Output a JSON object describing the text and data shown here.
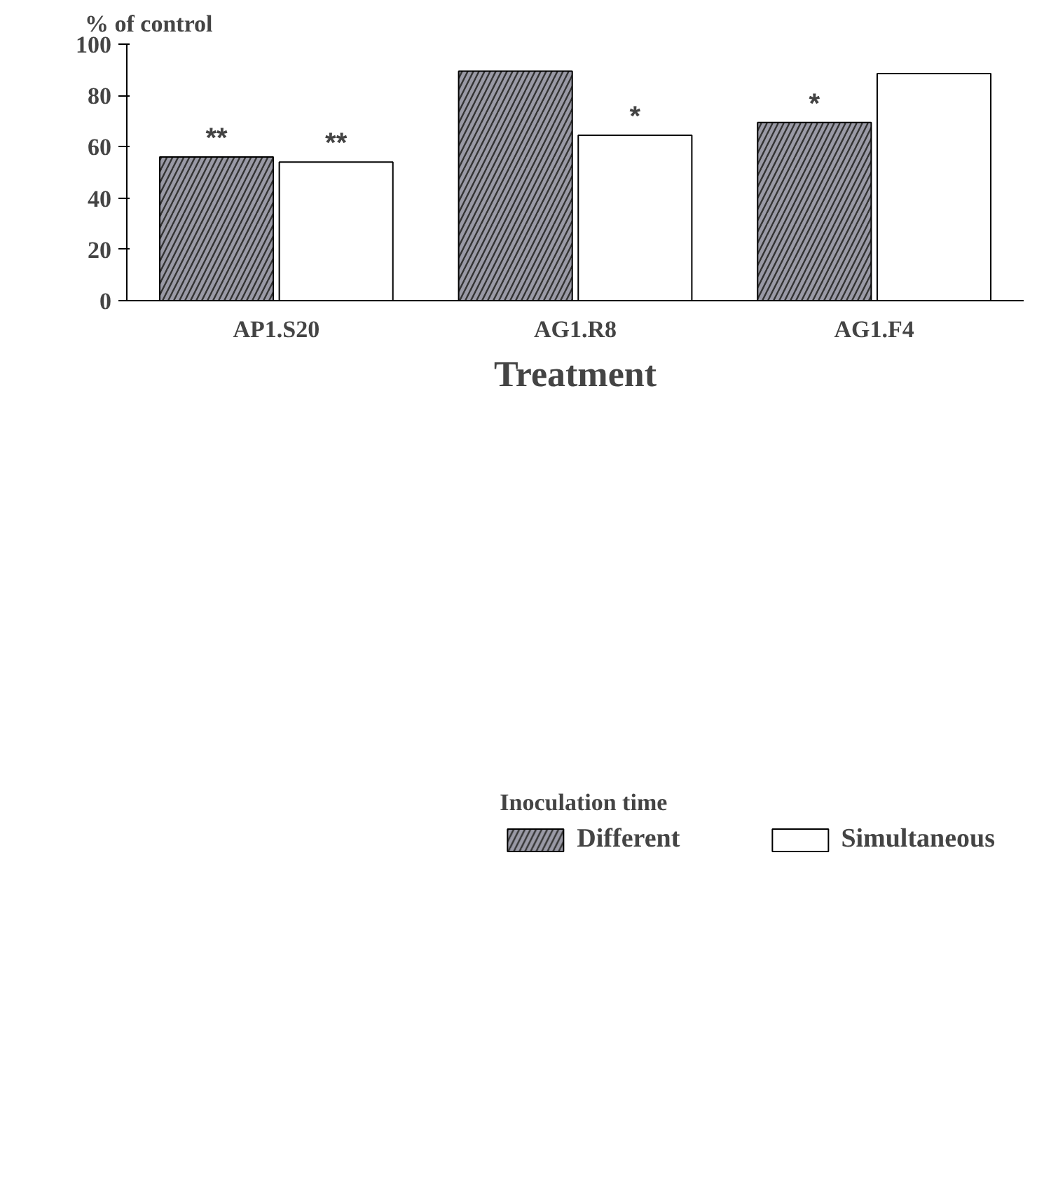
{
  "chart_data": {
    "type": "bar",
    "xlabel": "Treatment",
    "ylabel": "% of control",
    "legend_title": "Inoculation time",
    "categories": [
      "AP1.S20",
      "AG1.R8",
      "AG1.F4"
    ],
    "series": [
      {
        "name": "Different",
        "color": "#9a9aa6",
        "values": [
          56,
          89.5,
          69.5
        ],
        "value_labels": [
          "**",
          null,
          "*"
        ]
      },
      {
        "name": "Simultaneous",
        "color": "#ffffff",
        "values": [
          54,
          64.5,
          88.5
        ],
        "value_labels": [
          "**",
          "*",
          null
        ]
      }
    ],
    "ylim": [
      0,
      100
    ],
    "yticks": [
      0,
      20,
      40,
      60,
      80,
      100
    ],
    "grid": false,
    "legend": "bottom"
  }
}
